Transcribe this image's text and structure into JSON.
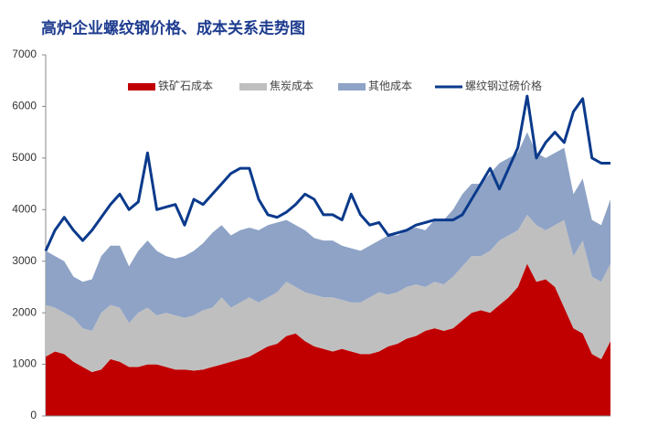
{
  "chart_data": {
    "type": "stacked_area_line",
    "title": "高炉企业螺纹钢价格、成本关系走势图",
    "categories": [
      null,
      null,
      null,
      null,
      null,
      null,
      null,
      null,
      null,
      null,
      null,
      null,
      null,
      null,
      null,
      null,
      null,
      null,
      null,
      null,
      null,
      null,
      null,
      null,
      null,
      null,
      null,
      null,
      null,
      null,
      null,
      null,
      null,
      null,
      null,
      null,
      null,
      null,
      null,
      null,
      null,
      null,
      null,
      null,
      null,
      null,
      null,
      null,
      null,
      null,
      null,
      null,
      null,
      null,
      null,
      null,
      null,
      null,
      null,
      null,
      null,
      null
    ],
    "ylim": [
      0,
      7000
    ],
    "yticks": [
      0,
      1000,
      2000,
      3000,
      4000,
      5000,
      6000,
      7000
    ],
    "legend": "top",
    "series": [
      {
        "name": "铁矿石成本",
        "kind": "area",
        "color": "#c00000",
        "values": [
          1150,
          1250,
          1200,
          1050,
          950,
          850,
          900,
          1100,
          1050,
          950,
          950,
          1000,
          1000,
          950,
          900,
          900,
          880,
          900,
          950,
          1000,
          1050,
          1100,
          1150,
          1250,
          1350,
          1400,
          1550,
          1600,
          1450,
          1350,
          1300,
          1250,
          1300,
          1250,
          1200,
          1200,
          1250,
          1350,
          1400,
          1500,
          1550,
          1650,
          1700,
          1650,
          1700,
          1850,
          2000,
          2050,
          2000,
          2150,
          2300,
          2500,
          2950,
          2600,
          2650,
          2500,
          2100,
          1700,
          1600,
          1200,
          1100,
          1450
        ]
      },
      {
        "name": "焦炭成本",
        "kind": "area",
        "color": "#bfbfbf",
        "values": [
          1000,
          850,
          800,
          850,
          750,
          800,
          1100,
          1050,
          1050,
          850,
          1050,
          1100,
          950,
          1050,
          1050,
          1000,
          1070,
          1150,
          1150,
          1300,
          1050,
          1100,
          1150,
          950,
          950,
          1000,
          1050,
          900,
          950,
          1000,
          1000,
          1050,
          950,
          950,
          1000,
          1100,
          1150,
          1000,
          1000,
          1000,
          1000,
          850,
          900,
          900,
          1000,
          1050,
          1100,
          1050,
          1200,
          1250,
          1200,
          1100,
          950,
          1100,
          950,
          1200,
          1700,
          1400,
          1800,
          1500,
          1500,
          1500
        ]
      },
      {
        "name": "其他成本",
        "kind": "area",
        "color": "#8ea3c6",
        "values": [
          1050,
          1000,
          1000,
          800,
          900,
          1000,
          1100,
          1150,
          1200,
          1100,
          1200,
          1300,
          1250,
          1100,
          1100,
          1200,
          1250,
          1300,
          1450,
          1400,
          1400,
          1400,
          1350,
          1400,
          1400,
          1350,
          1200,
          1200,
          1200,
          1100,
          1100,
          1100,
          1050,
          1050,
          1000,
          1000,
          1000,
          1150,
          1100,
          1100,
          1100,
          1100,
          1200,
          1250,
          1300,
          1400,
          1400,
          1400,
          1500,
          1500,
          1500,
          1500,
          1600,
          1400,
          1400,
          1400,
          1400,
          1200,
          1200,
          1100,
          1100,
          1250
        ]
      },
      {
        "name": "螺纹钢过磅价格",
        "kind": "line",
        "color": "#0b3a8c",
        "values": [
          3200,
          3600,
          3850,
          3600,
          3400,
          3600,
          3850,
          4100,
          4300,
          4000,
          4150,
          5100,
          4000,
          4050,
          4100,
          3700,
          4200,
          4100,
          4300,
          4500,
          4700,
          4800,
          4800,
          4200,
          3900,
          3850,
          3950,
          4100,
          4300,
          4200,
          3900,
          3900,
          3800,
          4300,
          3900,
          3700,
          3750,
          3500,
          3550,
          3600,
          3700,
          3750,
          3800,
          3800,
          3800,
          3900,
          4200,
          4500,
          4800,
          4400,
          4800,
          5200,
          6200,
          5000,
          5300,
          5500,
          5300,
          5900,
          6150,
          5000,
          4900,
          4900
        ]
      }
    ]
  }
}
